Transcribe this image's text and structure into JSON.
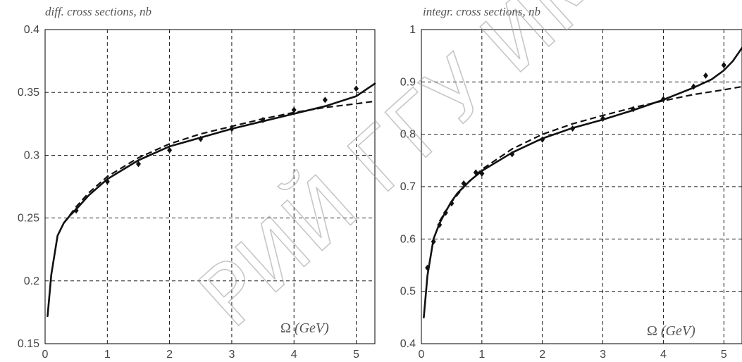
{
  "chart_data": [
    {
      "type": "line",
      "title": "diff. cross sections, nb",
      "xlabel": "Ω (GeV)",
      "xlabel_symbol": "Ω",
      "xlabel_unit": "(GeV)",
      "ylabel": "",
      "xlim": [
        0,
        5.3
      ],
      "ylim": [
        0.15,
        0.4
      ],
      "x_ticks": [
        "0",
        "1",
        "2",
        "3",
        "4",
        "5"
      ],
      "y_ticks": [
        "0.15",
        "0.2",
        "0.25",
        "0.3",
        "0.35",
        "0.4"
      ],
      "grid": true,
      "series": [
        {
          "style": "solid",
          "x": [
            0.04,
            0.1,
            0.2,
            0.3,
            0.4,
            0.5,
            0.7,
            1.0,
            1.5,
            2.0,
            2.5,
            3.0,
            3.5,
            4.0,
            4.5,
            5.0,
            5.3
          ],
          "y": [
            0.172,
            0.205,
            0.236,
            0.246,
            0.252,
            0.257,
            0.268,
            0.281,
            0.296,
            0.307,
            0.314,
            0.321,
            0.327,
            0.333,
            0.339,
            0.347,
            0.357
          ]
        },
        {
          "style": "dashed",
          "x": [
            0.3,
            0.5,
            0.7,
            1.0,
            1.5,
            2.0,
            2.5,
            3.0,
            3.5,
            4.0,
            4.5,
            5.0,
            5.3
          ],
          "y": [
            0.246,
            0.259,
            0.27,
            0.283,
            0.298,
            0.309,
            0.317,
            0.323,
            0.329,
            0.334,
            0.338,
            0.341,
            0.343
          ]
        },
        {
          "style": "markers",
          "x": [
            0.5,
            1.0,
            1.5,
            2.0,
            2.5,
            3.0,
            3.5,
            4.0,
            4.5,
            5.0
          ],
          "y": [
            0.256,
            0.279,
            0.293,
            0.304,
            0.313,
            0.321,
            0.328,
            0.336,
            0.344,
            0.353
          ]
        }
      ]
    },
    {
      "type": "line",
      "title": "integr. cross sections, nb",
      "xlabel": "Ω (GeV)",
      "xlabel_symbol": "Ω",
      "xlabel_unit": "(GeV)",
      "ylabel": "",
      "xlim": [
        0,
        5.3
      ],
      "ylim": [
        0.4,
        1.0
      ],
      "x_ticks": [
        "0",
        "1",
        "2",
        "3",
        "4",
        "5"
      ],
      "y_ticks": [
        "0.4",
        "0.5",
        "0.6",
        "0.7",
        "0.8",
        "0.9",
        "1"
      ],
      "grid": true,
      "series": [
        {
          "style": "solid",
          "x": [
            0.04,
            0.1,
            0.2,
            0.3,
            0.4,
            0.5,
            0.6,
            0.8,
            1.0,
            1.5,
            2.0,
            2.5,
            3.0,
            3.5,
            4.0,
            4.5,
            4.8,
            5.0,
            5.15,
            5.3
          ],
          "y": [
            0.45,
            0.53,
            0.6,
            0.63,
            0.652,
            0.672,
            0.688,
            0.711,
            0.73,
            0.765,
            0.792,
            0.812,
            0.828,
            0.846,
            0.866,
            0.889,
            0.905,
            0.922,
            0.94,
            0.965
          ]
        },
        {
          "style": "dashed",
          "x": [
            0.3,
            0.5,
            0.7,
            1.0,
            1.5,
            2.0,
            2.5,
            3.0,
            3.5,
            4.0,
            4.5,
            5.0,
            5.3
          ],
          "y": [
            0.634,
            0.671,
            0.699,
            0.733,
            0.772,
            0.8,
            0.82,
            0.836,
            0.851,
            0.864,
            0.876,
            0.885,
            0.891
          ]
        },
        {
          "style": "markers",
          "x": [
            0.1,
            0.2,
            0.3,
            0.4,
            0.5,
            0.7,
            0.9,
            1.0,
            1.5,
            2.0,
            2.5,
            3.0,
            3.5,
            4.0,
            4.5,
            4.7,
            5.0
          ],
          "y": [
            0.545,
            0.595,
            0.627,
            0.65,
            0.668,
            0.706,
            0.727,
            0.725,
            0.762,
            0.79,
            0.811,
            0.83,
            0.848,
            0.867,
            0.891,
            0.912,
            0.932
          ]
        }
      ]
    }
  ],
  "watermark": "РИЙ ГГУ ИМЕНИ"
}
